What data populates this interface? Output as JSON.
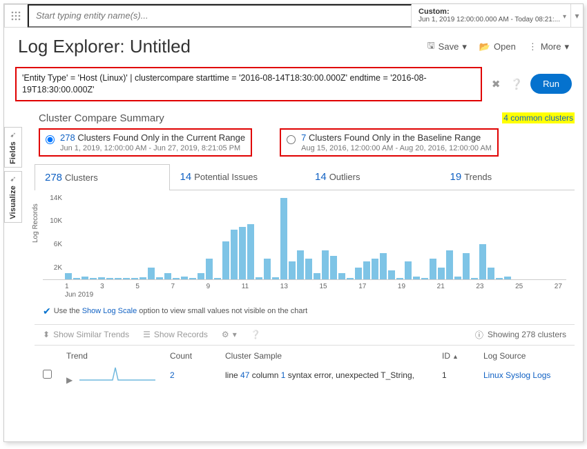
{
  "topbar": {
    "search_placeholder": "Start typing entity name(s)...",
    "time_label": "Custom:",
    "time_range": "Jun 1, 2019 12:00:00.000 AM - Today 08:21:..."
  },
  "header": {
    "title": "Log Explorer: Untitled",
    "save": "Save",
    "open": "Open",
    "more": "More"
  },
  "query": {
    "text": "'Entity Type' = 'Host (Linux)' | clustercompare starttime = '2016-08-14T18:30:00.000Z' endtime = '2016-08-19T18:30:00.000Z'",
    "run": "Run"
  },
  "sidetabs": {
    "fields": "Fields",
    "visualize": "Visualize"
  },
  "summary": {
    "title": "Cluster Compare Summary",
    "common": "4 common clusters",
    "current": {
      "num": "278",
      "text": "Clusters Found Only in the Current Range",
      "date": "Jun 1, 2019, 12:00:00 AM - Jun 27, 2019, 8:21:05 PM"
    },
    "baseline": {
      "num": "7",
      "text": "Clusters Found Only in the Baseline Range",
      "date": "Aug 15, 2016, 12:00:00 AM - Aug 20, 2016, 12:00:00 AM"
    }
  },
  "tabs": {
    "clusters": {
      "n": "278",
      "t": "Clusters"
    },
    "issues": {
      "n": "14",
      "t": "Potential Issues"
    },
    "outliers": {
      "n": "14",
      "t": "Outliers"
    },
    "trends": {
      "n": "19",
      "t": "Trends"
    }
  },
  "chart": {
    "ylabel": "Log Records",
    "yticks": [
      "14K",
      "10K",
      "6K",
      "2K"
    ],
    "ytick_vals": [
      14,
      10,
      6,
      2
    ],
    "ymax": 14,
    "xticks": [
      "1",
      "3",
      "5",
      "7",
      "9",
      "11",
      "13",
      "15",
      "17",
      "19",
      "21",
      "23",
      "25",
      "27"
    ],
    "xmonth": "Jun 2019",
    "bars": [
      1.0,
      0.2,
      0.5,
      0.2,
      0.3,
      0.2,
      0.2,
      0.2,
      0.2,
      0.3,
      2.0,
      0.3,
      1.0,
      0.2,
      0.5,
      0.2,
      1.0,
      3.5,
      0.2,
      6.5,
      8.5,
      9.0,
      9.5,
      0.3,
      3.5,
      0.3,
      14.0,
      3.0,
      5.0,
      3.5,
      1.0,
      5.0,
      4.0,
      1.0,
      0.2,
      2.0,
      3.0,
      3.5,
      4.5,
      1.5,
      0.2,
      3.0,
      0.5,
      0.2,
      3.5,
      2.0,
      5.0,
      0.5,
      4.5,
      0.2,
      6.0,
      2.0,
      0.2,
      0.5
    ],
    "bar_color": "#7ec4e6",
    "hint_pre": "Use the ",
    "hint_link": "Show Log Scale",
    "hint_post": " option to view small values not visible on the chart"
  },
  "toolbar": {
    "similar": "Show Similar Trends",
    "records": "Show Records",
    "showing": "Showing 278 clusters"
  },
  "table": {
    "cols": {
      "trend": "Trend",
      "count": "Count",
      "sample": "Cluster Sample",
      "id": "ID",
      "source": "Log Source"
    },
    "row1": {
      "count": "2",
      "sample_p1": "line ",
      "sample_n1": "47",
      "sample_p2": " column ",
      "sample_n2": "1",
      "sample_p3": " syntax error, unexpected T_String,",
      "id": "1",
      "source": "Linux Syslog Logs"
    }
  },
  "colors": {
    "accent": "#0572ce",
    "link": "#1061c3",
    "highlight_red": "#e00000",
    "highlight_yellow": "#ffff00"
  }
}
